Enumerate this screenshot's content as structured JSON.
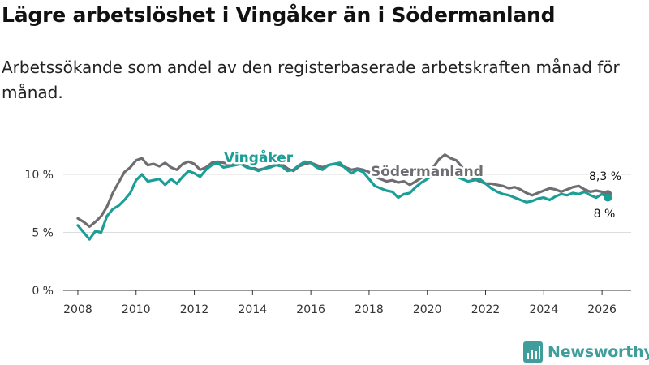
{
  "title": "Lägre arbetslöshet i Vingåker än i Södermanland",
  "subtitle": "Arbetssökande som andel av den registerbaserade arbetskraften månad för månad.",
  "brand": {
    "name": "Newsworthy"
  },
  "colors": {
    "vingaker": "#1a9e96",
    "sodermanland": "#6e6e72",
    "grid": "#dddddd",
    "axis": "#333333",
    "brand": "#3f9e9b"
  },
  "chart_data": {
    "type": "line",
    "title": "Lägre arbetslöshet i Vingåker än i Södermanland",
    "xlabel": "",
    "ylabel": "",
    "xlim": [
      2007.5,
      2027.0
    ],
    "ylim": [
      0,
      12
    ],
    "x_ticks": [
      2008,
      2010,
      2012,
      2014,
      2016,
      2018,
      2020,
      2022,
      2024,
      2026
    ],
    "x_tick_labels": [
      "2008",
      "2010",
      "2012",
      "2014",
      "2016",
      "2018",
      "2020",
      "2022",
      "2024",
      "2026"
    ],
    "y_ticks": [
      0,
      5,
      10
    ],
    "y_tick_labels": [
      "0 %",
      "5 %",
      "10 %"
    ],
    "grid": true,
    "series": [
      {
        "name": "Södermanland",
        "label": "Södermanland",
        "color": "#6e6e72",
        "end_label": "8,3 %",
        "x": [
          2008.0,
          2008.2,
          2008.4,
          2008.6,
          2008.8,
          2009.0,
          2009.2,
          2009.4,
          2009.6,
          2009.8,
          2010.0,
          2010.2,
          2010.4,
          2010.6,
          2010.8,
          2011.0,
          2011.2,
          2011.4,
          2011.6,
          2011.8,
          2012.0,
          2012.2,
          2012.4,
          2012.6,
          2012.8,
          2013.0,
          2013.2,
          2013.4,
          2013.6,
          2013.8,
          2014.0,
          2014.2,
          2014.4,
          2014.6,
          2014.8,
          2015.0,
          2015.2,
          2015.4,
          2015.6,
          2015.8,
          2016.0,
          2016.2,
          2016.4,
          2016.6,
          2016.8,
          2017.0,
          2017.2,
          2017.4,
          2017.6,
          2017.8,
          2018.0,
          2018.2,
          2018.4,
          2018.6,
          2018.8,
          2019.0,
          2019.2,
          2019.4,
          2019.6,
          2019.8,
          2020.0,
          2020.2,
          2020.4,
          2020.6,
          2020.8,
          2021.0,
          2021.2,
          2021.4,
          2021.6,
          2021.8,
          2022.0,
          2022.2,
          2022.4,
          2022.6,
          2022.8,
          2023.0,
          2023.2,
          2023.4,
          2023.6,
          2023.8,
          2024.0,
          2024.2,
          2024.4,
          2024.6,
          2024.8,
          2025.0,
          2025.2,
          2025.4,
          2025.6,
          2025.8,
          2026.0,
          2026.2
        ],
        "y": [
          6.2,
          5.9,
          5.5,
          5.9,
          6.4,
          7.2,
          8.4,
          9.3,
          10.2,
          10.6,
          11.2,
          11.4,
          10.8,
          10.9,
          10.7,
          11.0,
          10.6,
          10.4,
          10.9,
          11.1,
          10.9,
          10.4,
          10.6,
          11.0,
          11.1,
          11.0,
          10.9,
          10.8,
          10.9,
          10.7,
          10.6,
          10.4,
          10.5,
          10.7,
          10.8,
          10.9,
          10.5,
          10.3,
          10.7,
          10.9,
          11.0,
          10.8,
          10.6,
          10.8,
          10.9,
          10.8,
          10.6,
          10.4,
          10.5,
          10.4,
          10.2,
          9.8,
          9.6,
          9.4,
          9.5,
          9.3,
          9.4,
          9.1,
          9.4,
          9.7,
          10.0,
          10.6,
          11.3,
          11.7,
          11.4,
          11.2,
          10.6,
          10.0,
          9.6,
          9.4,
          9.2,
          9.2,
          9.1,
          9.0,
          8.8,
          8.9,
          8.7,
          8.4,
          8.2,
          8.4,
          8.6,
          8.8,
          8.7,
          8.5,
          8.7,
          8.9,
          9.0,
          8.7,
          8.5,
          8.6,
          8.5,
          8.3
        ]
      },
      {
        "name": "Vingåker",
        "label": "Vingåker",
        "color": "#1a9e96",
        "end_label": "8 %",
        "x": [
          2008.0,
          2008.2,
          2008.4,
          2008.6,
          2008.8,
          2009.0,
          2009.2,
          2009.4,
          2009.6,
          2009.8,
          2010.0,
          2010.2,
          2010.4,
          2010.6,
          2010.8,
          2011.0,
          2011.2,
          2011.4,
          2011.6,
          2011.8,
          2012.0,
          2012.2,
          2012.4,
          2012.6,
          2012.8,
          2013.0,
          2013.2,
          2013.4,
          2013.6,
          2013.8,
          2014.0,
          2014.2,
          2014.4,
          2014.6,
          2014.8,
          2015.0,
          2015.2,
          2015.4,
          2015.6,
          2015.8,
          2016.0,
          2016.2,
          2016.4,
          2016.6,
          2016.8,
          2017.0,
          2017.2,
          2017.4,
          2017.6,
          2017.8,
          2018.0,
          2018.2,
          2018.4,
          2018.6,
          2018.8,
          2019.0,
          2019.2,
          2019.4,
          2019.6,
          2019.8,
          2020.0,
          2020.2,
          2020.4,
          2020.6,
          2020.8,
          2021.0,
          2021.2,
          2021.4,
          2021.6,
          2021.8,
          2022.0,
          2022.2,
          2022.4,
          2022.6,
          2022.8,
          2023.0,
          2023.2,
          2023.4,
          2023.6,
          2023.8,
          2024.0,
          2024.2,
          2024.4,
          2024.6,
          2024.8,
          2025.0,
          2025.2,
          2025.4,
          2025.6,
          2025.8,
          2026.0,
          2026.2
        ],
        "y": [
          5.6,
          5.0,
          4.4,
          5.1,
          5.0,
          6.4,
          7.0,
          7.3,
          7.8,
          8.4,
          9.5,
          10.0,
          9.4,
          9.5,
          9.6,
          9.1,
          9.6,
          9.2,
          9.8,
          10.3,
          10.1,
          9.8,
          10.4,
          10.8,
          11.0,
          10.6,
          10.7,
          10.8,
          10.9,
          10.6,
          10.5,
          10.3,
          10.5,
          10.6,
          10.8,
          10.7,
          10.3,
          10.4,
          10.8,
          11.1,
          11.0,
          10.6,
          10.4,
          10.8,
          10.9,
          11.0,
          10.5,
          10.1,
          10.4,
          10.2,
          9.6,
          9.0,
          8.8,
          8.6,
          8.5,
          8.0,
          8.3,
          8.4,
          8.9,
          9.3,
          9.6,
          10.0,
          10.3,
          10.2,
          10.0,
          9.8,
          9.6,
          9.4,
          9.5,
          9.6,
          9.2,
          8.8,
          8.5,
          8.3,
          8.2,
          8.0,
          7.8,
          7.6,
          7.7,
          7.9,
          8.0,
          7.8,
          8.1,
          8.3,
          8.2,
          8.4,
          8.3,
          8.5,
          8.2,
          8.0,
          8.3,
          8.0
        ]
      }
    ]
  }
}
